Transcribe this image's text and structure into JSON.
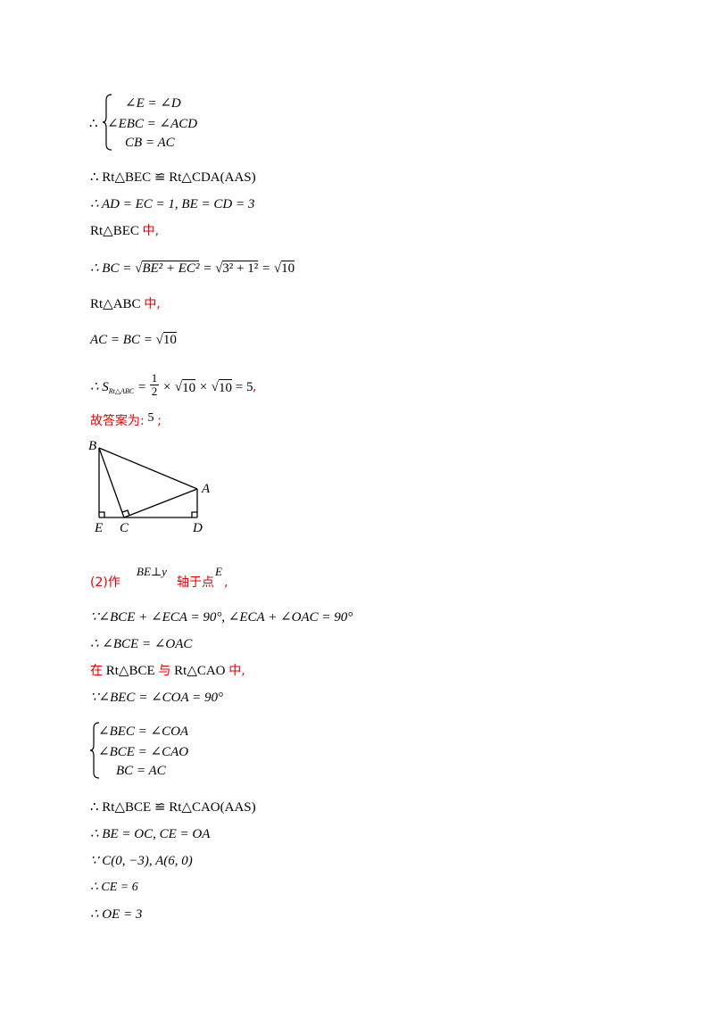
{
  "part1": {
    "sys1": {
      "therefore": "∴",
      "rows": [
        "∠E = ∠D",
        "∠EBC = ∠ACD",
        "CB = AC"
      ]
    },
    "l_congruent": "∴ Rt△BEC ≌ Rt△CDA(AAS)",
    "l_ad": "∴ AD = EC = 1, BE = CD = 3",
    "l_in1_prefix": "Rt△BEC",
    "l_in1_suffix": "中,",
    "l_bc_pre": "∴ BC = ",
    "l_bc_rad1": "BE² + EC²",
    "l_bc_eq1": " = ",
    "l_bc_rad2": "3² + 1²",
    "l_bc_eq2": " = ",
    "l_bc_rad3": "10",
    "l_in2_prefix": "Rt△ABC",
    "l_in2_suffix": "中,",
    "l_ac_pre": "AC = BC = ",
    "l_ac_rad": "10",
    "l_s_pre": "∴ S",
    "l_s_sub": "Rt△ABC",
    "l_s_eq": " = ",
    "l_s_num": "1",
    "l_s_den": "2",
    "l_s_mid1": " × ",
    "l_s_rad1": "10",
    "l_s_mid2": " × ",
    "l_s_rad2": "10",
    "l_s_res": " = 5",
    "l_s_comma": ",",
    "answer_prefix": "故答案为:",
    "answer_value": "5",
    "answer_suffix": ";"
  },
  "figure": {
    "labels": {
      "B": "B",
      "A": "A",
      "E": "E",
      "C": "C",
      "D": "D"
    }
  },
  "part2": {
    "intro_prefix": "(2)作",
    "intro_expr": "BE⊥y",
    "intro_mid": "轴于点",
    "intro_point": "E",
    "intro_suffix": ",",
    "l_angles": "∵∠BCE + ∠ECA = 90°, ∠ECA + ∠OAC = 90°",
    "l_bce": "∴ ∠BCE = ∠OAC",
    "l_in_pre": "在",
    "l_in_t1": "Rt△BCE",
    "l_in_and": "与",
    "l_in_t2": "Rt△CAO",
    "l_in_suf": "中,",
    "l_bec": "∵∠BEC = ∠COA = 90°",
    "sys2": {
      "rows": [
        "∠BEC = ∠COA",
        "∠BCE = ∠CAO",
        "BC = AC"
      ]
    },
    "l_congruent2": "∴ Rt△BCE ≌ Rt△CAO(AAS)",
    "l_be": "∴ BE = OC, CE = OA",
    "l_coords": "∵ C(0, −3), A(6, 0)",
    "l_ce": "∴ CE = 6",
    "l_oe": "∴ OE = 3"
  }
}
